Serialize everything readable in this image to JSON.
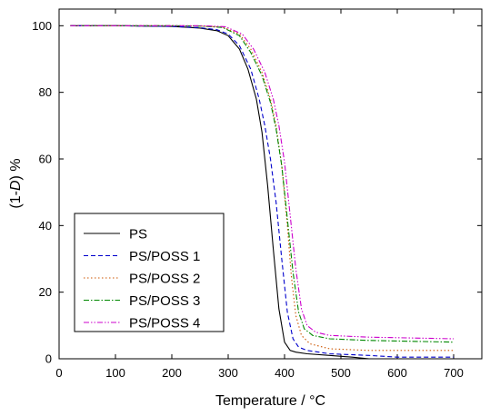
{
  "chart_data": {
    "type": "line",
    "title": "",
    "xlabel": "Temperature / °C",
    "ylabel_parts": [
      "(1-",
      "D",
      ") %"
    ],
    "xlim": [
      0,
      750
    ],
    "ylim": [
      0,
      105
    ],
    "xticks": [
      0,
      100,
      200,
      300,
      400,
      500,
      600,
      700
    ],
    "yticks": [
      0,
      20,
      40,
      60,
      80,
      100
    ],
    "grid": false,
    "legend": "left-bottom",
    "series": [
      {
        "name": "PS",
        "color": "#000000",
        "dash": "solid",
        "x": [
          20,
          100,
          200,
          250,
          280,
          300,
          320,
          335,
          350,
          360,
          370,
          380,
          390,
          400,
          410,
          420,
          440,
          480,
          520,
          550
        ],
        "y": [
          100,
          100,
          99.8,
          99.3,
          98.5,
          97,
          93,
          87,
          78,
          68,
          52,
          33,
          15,
          5,
          2.5,
          2,
          1.5,
          1,
          0.5,
          0
        ]
      },
      {
        "name": "PS/POSS 1",
        "color": "#0000cc",
        "dash": "5,3",
        "x": [
          20,
          100,
          200,
          250,
          280,
          300,
          320,
          340,
          355,
          365,
          375,
          385,
          395,
          405,
          415,
          425,
          440,
          480,
          550,
          600,
          700
        ],
        "y": [
          100,
          100,
          99.8,
          99.4,
          98.8,
          97.5,
          94,
          87,
          78,
          70,
          60,
          47,
          30,
          14,
          6,
          3.5,
          2.5,
          1.5,
          1,
          0.5,
          0.5
        ]
      },
      {
        "name": "PS/POSS 2",
        "color": "#cc5500",
        "dash": "1.5,2.5",
        "x": [
          20,
          100,
          200,
          250,
          290,
          320,
          340,
          360,
          375,
          385,
          395,
          405,
          412,
          420,
          430,
          445,
          480,
          550,
          700
        ],
        "y": [
          100,
          100,
          100,
          99.9,
          99.6,
          97.5,
          93,
          86,
          78,
          70,
          58,
          40,
          25,
          13,
          7,
          4.5,
          3,
          2.5,
          2.5
        ]
      },
      {
        "name": "PS/POSS 3",
        "color": "#008800",
        "dash": "6,2,1.5,2",
        "x": [
          20,
          100,
          200,
          250,
          290,
          320,
          340,
          360,
          375,
          385,
          395,
          405,
          415,
          425,
          435,
          450,
          480,
          550,
          700
        ],
        "y": [
          100,
          100,
          100,
          99.9,
          99.5,
          97,
          92,
          85,
          77,
          69,
          58,
          42,
          26,
          14,
          9,
          7,
          6,
          5.5,
          5
        ]
      },
      {
        "name": "PS/POSS 4",
        "color": "#cc00cc",
        "dash": "6,2,1.5,2,1.5,2",
        "x": [
          20,
          100,
          200,
          250,
          295,
          325,
          345,
          365,
          380,
          390,
          400,
          410,
          420,
          430,
          440,
          455,
          480,
          550,
          700
        ],
        "y": [
          100,
          100,
          100,
          100,
          99.7,
          97.5,
          93,
          86,
          78,
          70,
          59,
          43,
          27,
          15,
          10,
          8,
          7,
          6.5,
          6
        ]
      }
    ]
  }
}
